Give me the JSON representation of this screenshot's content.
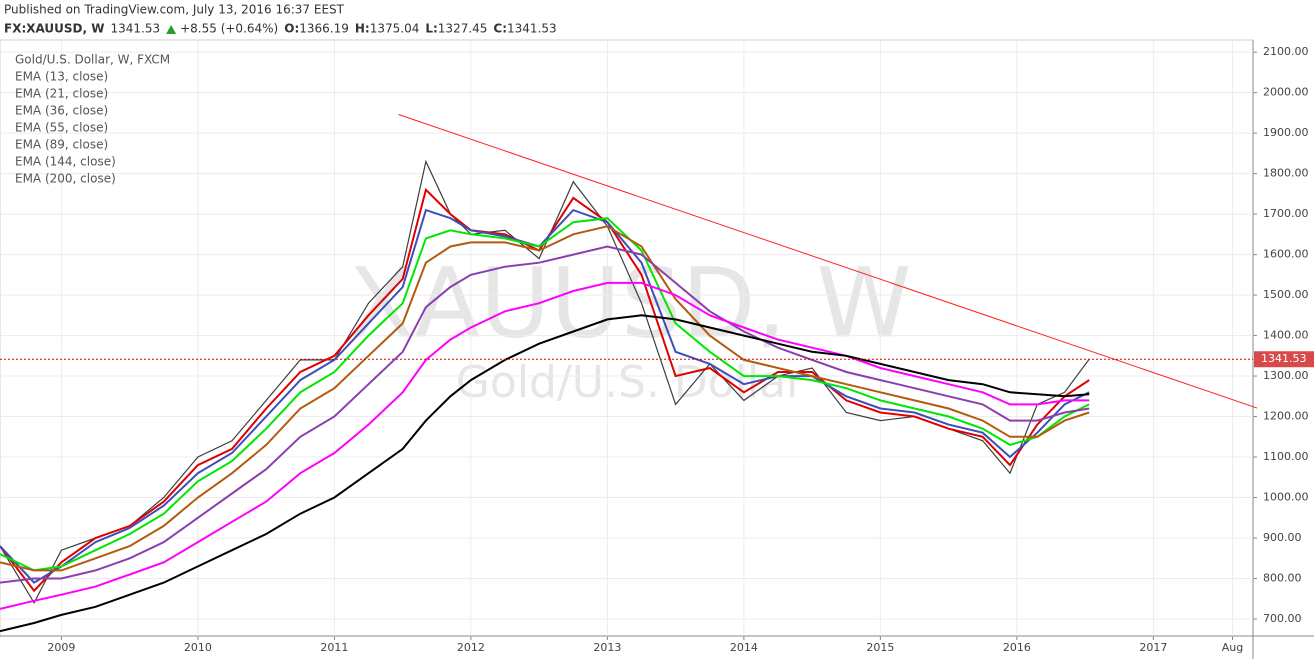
{
  "chart_data": {
    "type": "line",
    "published": "Published on TradingView.com, July 13, 2016 16:37 EEST",
    "symbol": "FX:XAUUSD, W",
    "last_price": 1341.53,
    "change": "+8.55 (+0.64%)",
    "ohlc": [
      {
        "label": "O:",
        "value": 1366.19
      },
      {
        "label": "H:",
        "value": 1375.04
      },
      {
        "label": "L:",
        "value": 1327.45
      },
      {
        "label": "C:",
        "value": 1341.53
      }
    ],
    "watermark": "XAUUSD, W",
    "watermark_sub": "Gold/U.S. Dollar",
    "x": [
      2008.55,
      2008.8,
      2009.0,
      2009.25,
      2009.5,
      2009.75,
      2010.0,
      2010.25,
      2010.5,
      2010.75,
      2011.0,
      2011.25,
      2011.5,
      2011.67,
      2011.85,
      2012.0,
      2012.25,
      2012.5,
      2012.75,
      2013.0,
      2013.25,
      2013.5,
      2013.75,
      2014.0,
      2014.25,
      2014.5,
      2014.75,
      2015.0,
      2015.25,
      2015.5,
      2015.75,
      2015.95,
      2016.15,
      2016.35,
      2016.53
    ],
    "series": [
      {
        "name": "Gold/U.S. Dollar, W, FXCM",
        "color": "#3d3d3d",
        "values": [
          880,
          740,
          870,
          900,
          930,
          1000,
          1100,
          1140,
          1240,
          1340,
          1340,
          1480,
          1570,
          1830,
          1700,
          1650,
          1660,
          1590,
          1780,
          1670,
          1480,
          1230,
          1330,
          1240,
          1300,
          1320,
          1210,
          1190,
          1200,
          1170,
          1140,
          1060,
          1230,
          1260,
          1341.53
        ]
      },
      {
        "name": "EMA (13, close)",
        "color": "#e00000",
        "values": [
          880,
          770,
          840,
          900,
          930,
          990,
          1080,
          1120,
          1220,
          1310,
          1350,
          1450,
          1540,
          1760,
          1700,
          1660,
          1650,
          1610,
          1740,
          1680,
          1550,
          1300,
          1320,
          1260,
          1310,
          1310,
          1240,
          1210,
          1200,
          1170,
          1150,
          1080,
          1180,
          1250,
          1290
        ]
      },
      {
        "name": "EMA (21, close)",
        "color": "#3b4fb8",
        "values": [
          880,
          790,
          830,
          890,
          925,
          980,
          1060,
          1110,
          1200,
          1290,
          1340,
          1430,
          1520,
          1710,
          1690,
          1660,
          1645,
          1620,
          1710,
          1680,
          1580,
          1360,
          1330,
          1280,
          1300,
          1300,
          1250,
          1220,
          1210,
          1180,
          1160,
          1100,
          1160,
          1230,
          1260
        ]
      },
      {
        "name": "EMA (36, close)",
        "color": "#00e600",
        "values": [
          860,
          820,
          830,
          870,
          910,
          960,
          1040,
          1090,
          1170,
          1260,
          1310,
          1400,
          1480,
          1640,
          1660,
          1650,
          1640,
          1620,
          1680,
          1690,
          1610,
          1430,
          1360,
          1300,
          1300,
          1290,
          1270,
          1240,
          1220,
          1200,
          1170,
          1130,
          1150,
          1200,
          1230
        ]
      },
      {
        "name": "EMA (55, close)",
        "color": "#b35a10",
        "values": [
          840,
          820,
          820,
          850,
          880,
          930,
          1000,
          1060,
          1130,
          1220,
          1270,
          1350,
          1430,
          1580,
          1620,
          1630,
          1630,
          1610,
          1650,
          1670,
          1620,
          1490,
          1400,
          1340,
          1320,
          1300,
          1280,
          1260,
          1240,
          1220,
          1190,
          1150,
          1150,
          1190,
          1210
        ]
      },
      {
        "name": "EMA (89, close)",
        "color": "#8a3fae",
        "values": [
          790,
          800,
          800,
          820,
          850,
          890,
          950,
          1010,
          1070,
          1150,
          1200,
          1280,
          1360,
          1470,
          1520,
          1550,
          1570,
          1580,
          1600,
          1620,
          1600,
          1530,
          1460,
          1410,
          1370,
          1340,
          1310,
          1290,
          1270,
          1250,
          1230,
          1190,
          1190,
          1210,
          1220
        ]
      },
      {
        "name": "EMA (144, close)",
        "color": "#ff00ff",
        "values": [
          725,
          745,
          760,
          780,
          810,
          840,
          890,
          940,
          990,
          1060,
          1110,
          1180,
          1260,
          1340,
          1390,
          1420,
          1460,
          1480,
          1510,
          1530,
          1530,
          1500,
          1450,
          1420,
          1390,
          1370,
          1350,
          1320,
          1300,
          1280,
          1260,
          1230,
          1230,
          1240,
          1240
        ]
      },
      {
        "name": "EMA (200, close)",
        "color": "#000000",
        "values": [
          670,
          690,
          710,
          730,
          760,
          790,
          830,
          870,
          910,
          960,
          1000,
          1060,
          1120,
          1190,
          1250,
          1290,
          1340,
          1380,
          1410,
          1440,
          1450,
          1440,
          1420,
          1400,
          1380,
          1360,
          1350,
          1330,
          1310,
          1290,
          1280,
          1260,
          1255,
          1250,
          1255
        ]
      }
    ],
    "trendline": {
      "color": "#ff2020",
      "x": [
        2011.47,
        2017.76
      ],
      "values": [
        1946,
        1221
      ]
    },
    "xlim": [
      2008.55,
      2017.73
    ],
    "ylim": [
      658,
      2130
    ],
    "xticks": [
      2009,
      2010,
      2011,
      2012,
      2013,
      2014,
      2015,
      2016,
      2017,
      {
        "value": 2017.58,
        "label": "Aug"
      }
    ],
    "yticks": [
      {
        "value": 700,
        "label": "700.00"
      },
      {
        "value": 800,
        "label": "800.00"
      },
      {
        "value": 900,
        "label": "900.00"
      },
      {
        "value": 1000,
        "label": "1000.00"
      },
      {
        "value": 1100,
        "label": "1100.00"
      },
      {
        "value": 1200,
        "label": "1200.00"
      },
      {
        "value": 1300,
        "label": "1300.00"
      },
      {
        "value": 1400,
        "label": "1400.00"
      },
      {
        "value": 1500,
        "label": "1500.00"
      },
      {
        "value": 1600,
        "label": "1600.00"
      },
      {
        "value": 1700,
        "label": "1700.00"
      },
      {
        "value": 1800,
        "label": "1800.00"
      },
      {
        "value": 1900,
        "label": "1900.00"
      },
      {
        "value": 2000,
        "label": "2000.00"
      },
      {
        "value": 2100,
        "label": "2100.00"
      }
    ],
    "grid": true
  }
}
